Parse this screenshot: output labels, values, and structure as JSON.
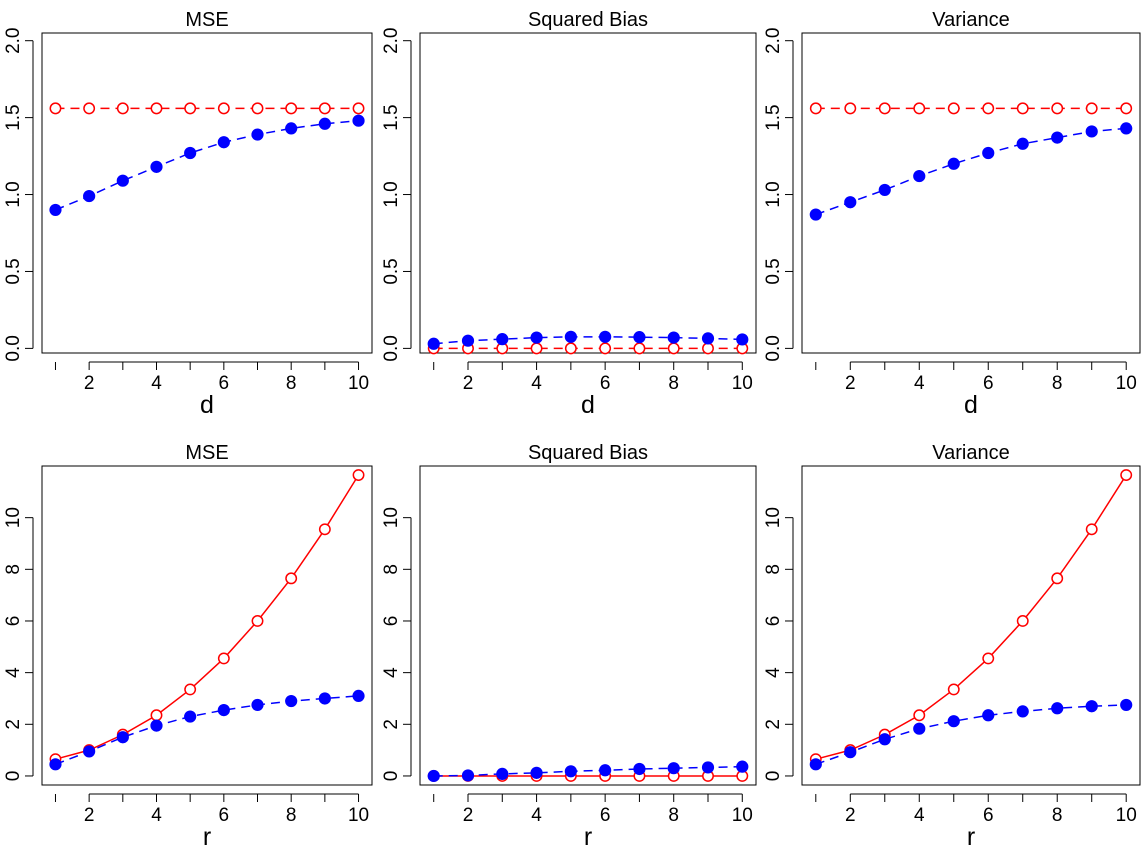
{
  "chart_data": [
    {
      "type": "line",
      "title": "MSE",
      "xlabel": "d",
      "ylabel": "",
      "x": [
        1,
        2,
        3,
        4,
        5,
        6,
        7,
        8,
        9,
        10
      ],
      "xticks": [
        2,
        4,
        6,
        8,
        10
      ],
      "ylim": [
        -0.03,
        2.05
      ],
      "yticks": [
        "0.0",
        "0.5",
        "1.0",
        "1.5",
        "2.0"
      ],
      "series": [
        {
          "color": "#ff0000",
          "line": "dashed",
          "marker": "open-circle",
          "values": [
            1.56,
            1.56,
            1.56,
            1.56,
            1.56,
            1.56,
            1.56,
            1.56,
            1.56,
            1.56
          ]
        },
        {
          "color": "#0000ff",
          "line": "dashed",
          "marker": "filled-circle",
          "values": [
            0.9,
            0.99,
            1.09,
            1.18,
            1.27,
            1.34,
            1.39,
            1.43,
            1.46,
            1.48
          ]
        }
      ]
    },
    {
      "type": "line",
      "title": "Squared Bias",
      "xlabel": "d",
      "ylabel": "",
      "x": [
        1,
        2,
        3,
        4,
        5,
        6,
        7,
        8,
        9,
        10
      ],
      "xticks": [
        2,
        4,
        6,
        8,
        10
      ],
      "ylim": [
        -0.03,
        2.05
      ],
      "yticks": [
        "0.0",
        "0.5",
        "1.0",
        "1.5",
        "2.0"
      ],
      "series": [
        {
          "color": "#ff0000",
          "line": "dashed",
          "marker": "open-circle",
          "values": [
            0.0,
            0.0,
            0.0,
            0.0,
            0.0,
            0.0,
            0.0,
            0.0,
            0.0,
            0.0
          ]
        },
        {
          "color": "#0000ff",
          "line": "dashed",
          "marker": "filled-circle",
          "values": [
            0.03,
            0.05,
            0.06,
            0.07,
            0.075,
            0.075,
            0.073,
            0.07,
            0.065,
            0.058
          ]
        }
      ]
    },
    {
      "type": "line",
      "title": "Variance",
      "xlabel": "d",
      "ylabel": "",
      "x": [
        1,
        2,
        3,
        4,
        5,
        6,
        7,
        8,
        9,
        10
      ],
      "xticks": [
        2,
        4,
        6,
        8,
        10
      ],
      "ylim": [
        -0.03,
        2.05
      ],
      "yticks": [
        "0.0",
        "0.5",
        "1.0",
        "1.5",
        "2.0"
      ],
      "series": [
        {
          "color": "#ff0000",
          "line": "dashed",
          "marker": "open-circle",
          "values": [
            1.56,
            1.56,
            1.56,
            1.56,
            1.56,
            1.56,
            1.56,
            1.56,
            1.56,
            1.56
          ]
        },
        {
          "color": "#0000ff",
          "line": "dashed",
          "marker": "filled-circle",
          "values": [
            0.87,
            0.95,
            1.03,
            1.12,
            1.2,
            1.27,
            1.33,
            1.37,
            1.41,
            1.43
          ]
        }
      ]
    },
    {
      "type": "line",
      "title": "MSE",
      "xlabel": "r",
      "ylabel": "",
      "x": [
        1,
        2,
        3,
        4,
        5,
        6,
        7,
        8,
        9,
        10
      ],
      "xticks": [
        2,
        4,
        6,
        8,
        10
      ],
      "ylim": [
        -0.35,
        12.0
      ],
      "yticks": [
        "0",
        "2",
        "4",
        "6",
        "8",
        "10"
      ],
      "series": [
        {
          "color": "#ff0000",
          "line": "solid",
          "marker": "open-circle",
          "values": [
            0.65,
            1.0,
            1.6,
            2.35,
            3.35,
            4.55,
            6.0,
            7.65,
            9.55,
            11.65
          ]
        },
        {
          "color": "#0000ff",
          "line": "dashed",
          "marker": "filled-circle",
          "values": [
            0.45,
            0.95,
            1.5,
            1.95,
            2.3,
            2.55,
            2.75,
            2.9,
            3.0,
            3.1
          ]
        }
      ]
    },
    {
      "type": "line",
      "title": "Squared Bias",
      "xlabel": "r",
      "ylabel": "",
      "x": [
        1,
        2,
        3,
        4,
        5,
        6,
        7,
        8,
        9,
        10
      ],
      "xticks": [
        2,
        4,
        6,
        8,
        10
      ],
      "ylim": [
        -0.35,
        12.0
      ],
      "yticks": [
        "0",
        "2",
        "4",
        "6",
        "8",
        "10"
      ],
      "series": [
        {
          "color": "#ff0000",
          "line": "solid",
          "marker": "open-circle",
          "values": [
            0.0,
            0.0,
            0.0,
            0.0,
            0.0,
            0.0,
            0.0,
            0.0,
            0.0,
            0.0
          ]
        },
        {
          "color": "#0000ff",
          "line": "dashed",
          "marker": "filled-circle",
          "values": [
            0.0,
            0.02,
            0.08,
            0.12,
            0.18,
            0.22,
            0.27,
            0.3,
            0.33,
            0.36
          ]
        }
      ]
    },
    {
      "type": "line",
      "title": "Variance",
      "xlabel": "r",
      "ylabel": "",
      "x": [
        1,
        2,
        3,
        4,
        5,
        6,
        7,
        8,
        9,
        10
      ],
      "xticks": [
        2,
        4,
        6,
        8,
        10
      ],
      "ylim": [
        -0.35,
        12.0
      ],
      "yticks": [
        "0",
        "2",
        "4",
        "6",
        "8",
        "10"
      ],
      "series": [
        {
          "color": "#ff0000",
          "line": "solid",
          "marker": "open-circle",
          "values": [
            0.65,
            1.0,
            1.6,
            2.35,
            3.35,
            4.55,
            6.0,
            7.65,
            9.55,
            11.65
          ]
        },
        {
          "color": "#0000ff",
          "line": "dashed",
          "marker": "filled-circle",
          "values": [
            0.45,
            0.92,
            1.42,
            1.83,
            2.12,
            2.35,
            2.5,
            2.62,
            2.7,
            2.75
          ]
        }
      ]
    }
  ]
}
